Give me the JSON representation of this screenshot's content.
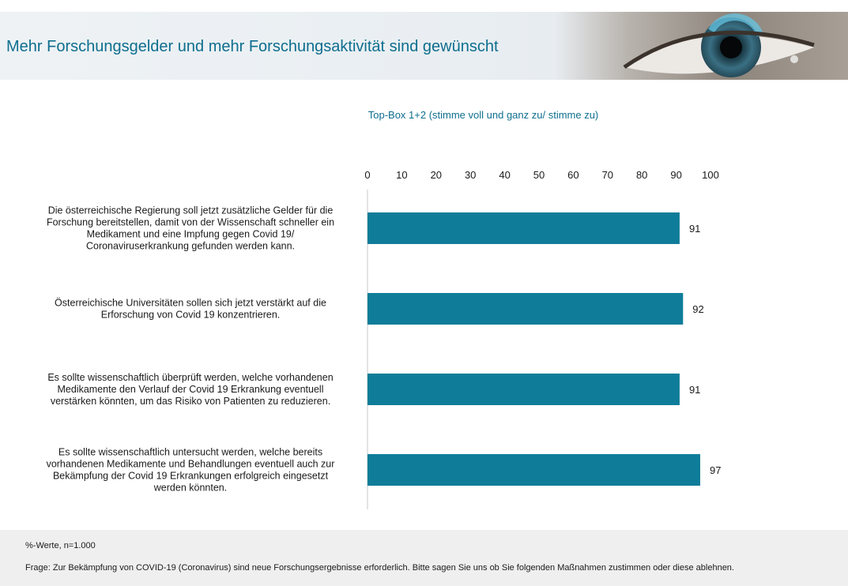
{
  "header": {
    "title": "Mehr Forschungsgelder und mehr Forschungsaktivität sind gewünscht"
  },
  "chart_data": {
    "type": "bar",
    "orientation": "horizontal",
    "title": "Top-Box 1+2 (stimme voll und ganz zu/ stimme zu)",
    "xlim": [
      0,
      100
    ],
    "ticks": [
      0,
      10,
      20,
      30,
      40,
      50,
      60,
      70,
      80,
      90,
      100
    ],
    "categories": [
      [
        "Die österreichische Regierung soll jetzt zusätzliche Gelder für die",
        "Forschung bereitstellen, damit von der Wissenschaft schneller ein",
        "Medikament und eine Impfung gegen Covid 19/",
        "Coronaviruserkrankung gefunden werden kann."
      ],
      [
        "Österreichische Universitäten sollen sich jetzt verstärkt auf die",
        "Erforschung von Covid 19 konzentrieren."
      ],
      [
        "Es sollte wissenschaftlich überprüft werden, welche vorhandenen",
        "Medikamente den Verlauf der Covid 19 Erkrankung eventuell",
        "verstärken könnten, um das Risiko von Patienten zu reduzieren."
      ],
      [
        "Es sollte wissenschaftlich untersucht werden, welche bereits",
        "vorhandenen Medikamente und Behandlungen eventuell auch zur",
        "Bekämpfung der Covid 19 Erkrankungen erfolgreich eingesetzt",
        "werden könnten."
      ]
    ],
    "values": [
      91,
      92,
      91,
      97
    ],
    "bar_color": "#0f7d99",
    "grid": false,
    "legend": "none"
  },
  "footer": {
    "note": "%-Werte, n=1.000",
    "question": "Frage: Zur Bekämpfung von COVID-19 (Coronavirus) sind neue Forschungsergebnisse erforderlich. Bitte sagen Sie uns ob Sie folgenden Maßnahmen zustimmen oder diese ablehnen."
  }
}
